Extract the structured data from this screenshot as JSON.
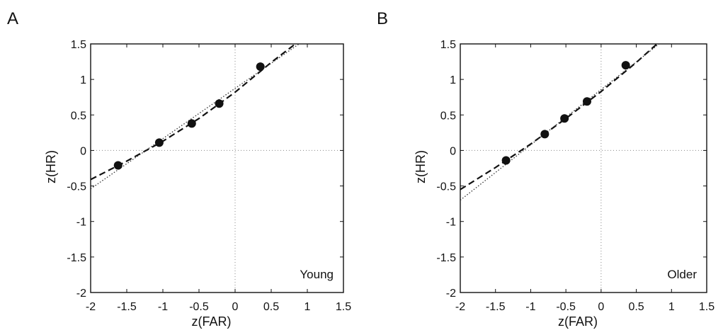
{
  "chart_data": [
    {
      "type": "scatter",
      "panel_letter": "A",
      "xlabel": "z(FAR)",
      "ylabel": "z(HR)",
      "annotation": "Young",
      "xlim": [
        -2,
        1.5
      ],
      "ylim": [
        -2,
        1.5
      ],
      "xticks": [
        -2,
        -1.5,
        -1,
        -0.5,
        0,
        0.5,
        1,
        1.5
      ],
      "yticks": [
        -2,
        -1.5,
        -1,
        -0.5,
        0,
        0.5,
        1,
        1.5
      ],
      "xtick_labels": [
        "-2",
        "-1.5",
        "-1",
        "-0.5",
        "0",
        "0.5",
        "1",
        "1.5"
      ],
      "ytick_labels": [
        "-2",
        "-1.5",
        "-1",
        "-0.5",
        "0",
        "0.5",
        "1",
        "1.5"
      ],
      "reference_lines": {
        "x": 0,
        "y": 0
      },
      "series": [
        {
          "role": "points",
          "x": [
            -1.62,
            -1.05,
            -0.6,
            -0.22,
            0.35
          ],
          "y": [
            -0.21,
            0.11,
            0.38,
            0.66,
            1.18
          ]
        },
        {
          "role": "dashed-curve",
          "x": [
            -2,
            -1.5,
            -1.0,
            -0.5,
            0.0,
            0.5,
            0.9
          ],
          "y": [
            -0.41,
            -0.15,
            0.13,
            0.45,
            0.82,
            1.24,
            1.55
          ]
        },
        {
          "role": "dotted-line",
          "x": [
            -2,
            0.9
          ],
          "y": [
            -0.54,
            1.51
          ]
        }
      ]
    },
    {
      "type": "scatter",
      "panel_letter": "B",
      "xlabel": "z(FAR)",
      "ylabel": "z(HR)",
      "annotation": "Older",
      "xlim": [
        -2,
        1.5
      ],
      "ylim": [
        -2,
        1.5
      ],
      "xticks": [
        -2,
        -1.5,
        -1,
        -0.5,
        0,
        0.5,
        1,
        1.5
      ],
      "yticks": [
        -2,
        -1.5,
        -1,
        -0.5,
        0,
        0.5,
        1,
        1.5
      ],
      "xtick_labels": [
        "-2",
        "-1.5",
        "-1",
        "-0.5",
        "0",
        "0.5",
        "1",
        "1.5"
      ],
      "ytick_labels": [
        "-2",
        "-1.5",
        "-1",
        "-0.5",
        "0",
        "0.5",
        "1",
        "1.5"
      ],
      "reference_lines": {
        "x": 0,
        "y": 0
      },
      "series": [
        {
          "role": "points",
          "x": [
            -1.35,
            -0.8,
            -0.52,
            -0.2,
            0.35
          ],
          "y": [
            -0.14,
            0.23,
            0.45,
            0.69,
            1.2
          ]
        },
        {
          "role": "dashed-curve",
          "x": [
            -2,
            -1.5,
            -1.0,
            -0.5,
            0.0,
            0.5,
            0.85
          ],
          "y": [
            -0.55,
            -0.24,
            0.09,
            0.45,
            0.83,
            1.24,
            1.55
          ]
        },
        {
          "role": "dotted-line",
          "x": [
            -2,
            0.85
          ],
          "y": [
            -0.7,
            1.52
          ]
        }
      ]
    }
  ]
}
